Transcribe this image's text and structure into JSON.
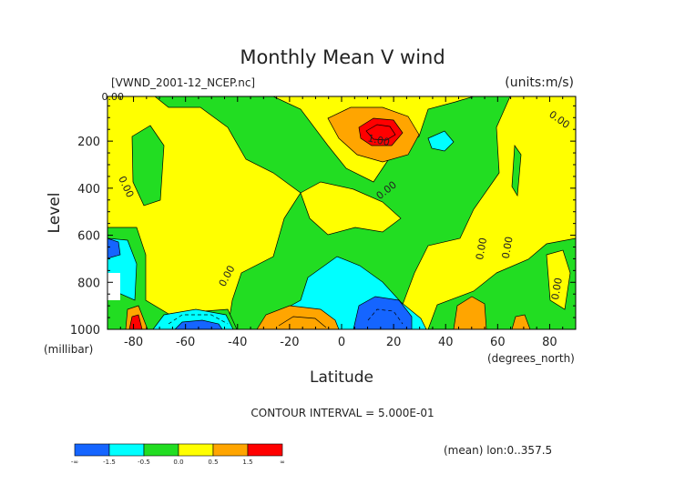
{
  "chart_data": {
    "type": "heatmap",
    "title": "Monthly Mean V wind",
    "file_label": "[VWND_2001-12_NCEP.nc]",
    "units_label": "(units:m/s)",
    "xlabel": "Latitude",
    "xunit": "(degrees_north)",
    "ylabel": "Level",
    "yunit": "(millibar)",
    "xlim": [
      -90,
      90
    ],
    "ylim": [
      1000,
      10
    ],
    "x_ticks": [
      -80,
      -60,
      -40,
      -20,
      0,
      20,
      40,
      60,
      80
    ],
    "y_ticks": [
      200,
      400,
      600,
      800,
      1000
    ],
    "contour_labels": [
      "0.00",
      "0.00",
      "0.00",
      "0.00",
      "0.00",
      "0.00",
      "0.00",
      "0.00",
      "1.00"
    ],
    "contour_interval_text": "CONTOUR INTERVAL = 5.000E-01",
    "averaging_note": "(mean) lon:0..357.5",
    "colorbar": {
      "labels": [
        "-∞",
        "-1.5",
        "-0.5",
        "0.0",
        "0.5",
        "1.5",
        "∞"
      ],
      "colors": [
        "#1565ff",
        "#00ffff",
        "#22dd22",
        "#ffff00",
        "#ffa500",
        "#ff0000"
      ]
    }
  }
}
